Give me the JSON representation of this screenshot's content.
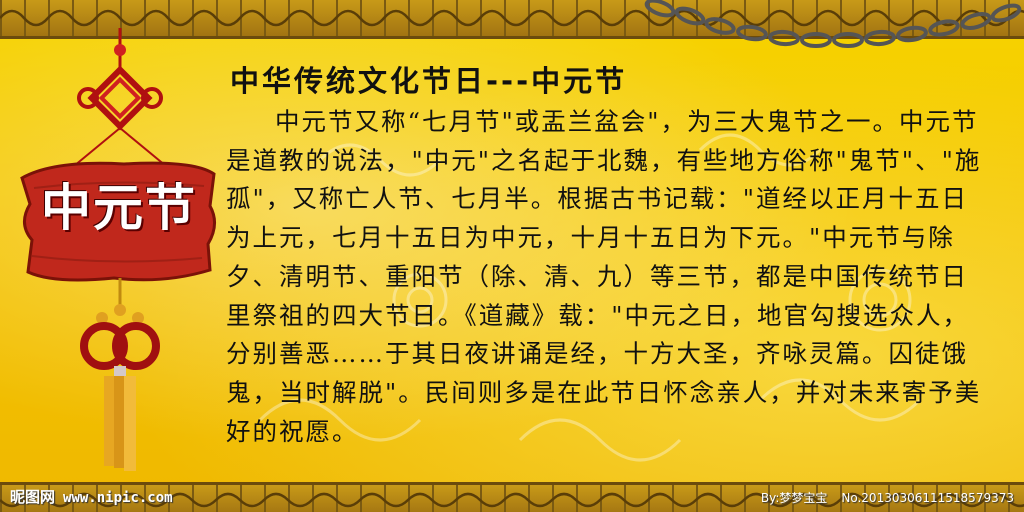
{
  "title": "中华传统文化节日---中元节",
  "sign_text": "中元节",
  "body": "中元节又称“七月节\"或盂兰盆会\"，为三大鬼节之一。中元节是道教的说法，\"中元\"之名起于北魏，有些地方俗称\"鬼节\"、\"施孤\"，又称亡人节、七月半。根据古书记载：\"道经以正月十五日为上元，七月十五日为中元，十月十五日为下元。\"中元节与除夕、清明节、重阳节（除、清、九）等三节，都是中国传统节日里祭祖的四大节日。《道藏》载：\"中元之日，地官勾搜选众人，分别善恶……于其日夜讲诵是经，十方大圣，齐咏灵篇。囚徒饿鬼，当时解脱\"。民间则多是在此节日怀念亲人，并对未来寄予美好的祝愿。",
  "watermark": {
    "site_name": "昵图网",
    "url": "www.nipic.com",
    "author": "By:梦梦宝宝",
    "number": "No.20130306111518579373"
  },
  "colors": {
    "background": "#f4c400",
    "border": "#a27412",
    "sign": "#c0281c",
    "knot": "#b01010",
    "tassel": "#e7a722"
  },
  "icons": [
    "chain-icon",
    "chinese-knot-icon",
    "tassel-icon"
  ]
}
